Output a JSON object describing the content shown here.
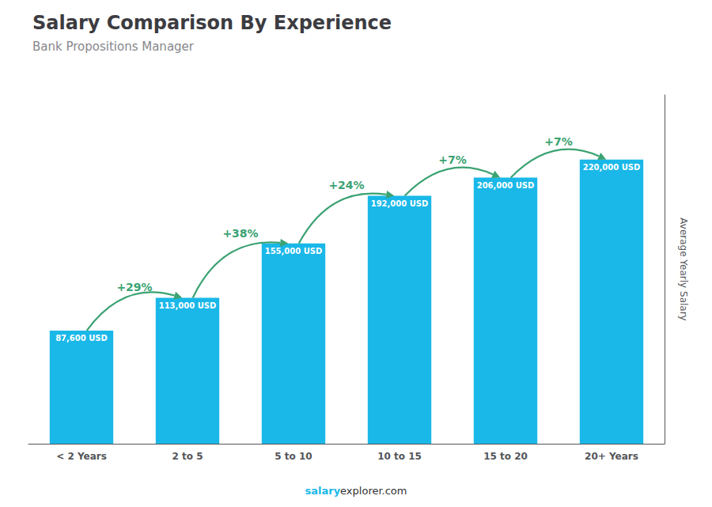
{
  "chart_data": {
    "type": "bar",
    "title": "Salary Comparison By Experience",
    "subtitle": "Bank Propositions Manager",
    "categories": [
      "< 2 Years",
      "2 to 5",
      "5 to 10",
      "10 to 15",
      "15 to 20",
      "20+ Years"
    ],
    "values": [
      87600,
      113000,
      155000,
      192000,
      206000,
      220000
    ],
    "value_labels": [
      "87,600 USD",
      "113,000 USD",
      "155,000 USD",
      "192,000 USD",
      "206,000 USD",
      "220,000 USD"
    ],
    "data_labels": true,
    "annotations": [
      "+29%",
      "+38%",
      "+24%",
      "+7%",
      "+7%"
    ],
    "ylabel": "Average Yearly Salary",
    "footer": [
      "salary",
      "explorer.com"
    ],
    "color": "#1ab8e8",
    "ylim": [
      0,
      270000
    ],
    "grid": false,
    "tick_labels": "x"
  }
}
